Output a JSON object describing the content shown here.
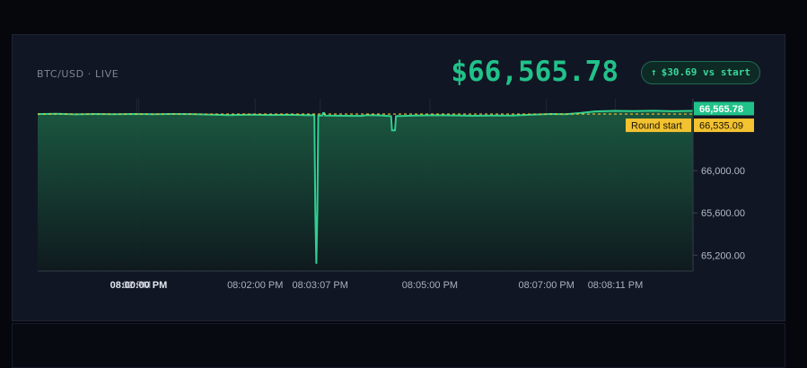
{
  "header": {
    "pair_label": "BTC/USD · LIVE",
    "price": "$66,565.78",
    "delta_arrow": "↑",
    "delta_text": "$30.69 vs start"
  },
  "colors": {
    "line": "#2fd08e",
    "area_top": "#1b5a41",
    "area_bottom": "#0f1a1e",
    "start_line": "#f2c230",
    "current_tag": "#21c28a",
    "start_tag": "#f2c230"
  },
  "chart_data": {
    "type": "area",
    "title": "",
    "xlabel": "",
    "ylabel": "",
    "x_ticks": [
      {
        "label": "02 PM",
        "t": -2
      },
      {
        "label": "08:00:00 PM",
        "t": 0,
        "bold": true
      },
      {
        "label": "08:02:00 PM",
        "t": 120
      },
      {
        "label": "08:03:07 PM",
        "t": 187
      },
      {
        "label": "08:05:00 PM",
        "t": 300
      },
      {
        "label": "08:07:00 PM",
        "t": 420
      },
      {
        "label": "08:08:11 PM",
        "t": 491
      }
    ],
    "y_ticks": [
      {
        "label": "66,000.00",
        "value": 66000
      },
      {
        "label": "65,600.00",
        "value": 65600
      },
      {
        "label": "65,200.00",
        "value": 65200
      }
    ],
    "ylim": [
      65050,
      66680
    ],
    "x_range_seconds": [
      -104,
      571
    ],
    "round_start": {
      "label": "Round start",
      "value": 66535.09,
      "value_label": "66,535.09"
    },
    "current": {
      "value": 66565.78,
      "value_label": "66,565.78"
    },
    "series": [
      {
        "points": [
          [
            -104,
            66535
          ],
          [
            -85,
            66537
          ],
          [
            -65,
            66532
          ],
          [
            -45,
            66536
          ],
          [
            -25,
            66534
          ],
          [
            -5,
            66536
          ],
          [
            15,
            66533
          ],
          [
            35,
            66536
          ],
          [
            55,
            66535
          ],
          [
            75,
            66530
          ],
          [
            95,
            66525
          ],
          [
            115,
            66530
          ],
          [
            135,
            66526
          ],
          [
            155,
            66528
          ],
          [
            175,
            66524
          ],
          [
            181,
            66525
          ],
          [
            182,
            65600
          ],
          [
            183,
            65120
          ],
          [
            184,
            65600
          ],
          [
            185,
            66520
          ],
          [
            189,
            66520
          ],
          [
            190,
            66545
          ],
          [
            191,
            66545
          ],
          [
            192,
            66520
          ],
          [
            230,
            66518
          ],
          [
            235,
            66525
          ],
          [
            250,
            66522
          ],
          [
            260,
            66515
          ],
          [
            261,
            66380
          ],
          [
            264,
            66380
          ],
          [
            265,
            66515
          ],
          [
            285,
            66520
          ],
          [
            305,
            66524
          ],
          [
            325,
            66522
          ],
          [
            345,
            66519
          ],
          [
            365,
            66521
          ],
          [
            385,
            66520
          ],
          [
            405,
            66530
          ],
          [
            425,
            66536
          ],
          [
            440,
            66534
          ],
          [
            455,
            66545
          ],
          [
            470,
            66560
          ],
          [
            490,
            66565
          ],
          [
            510,
            66563
          ],
          [
            530,
            66566
          ],
          [
            550,
            66562
          ],
          [
            571,
            66565.78
          ]
        ]
      }
    ],
    "grid": true
  }
}
